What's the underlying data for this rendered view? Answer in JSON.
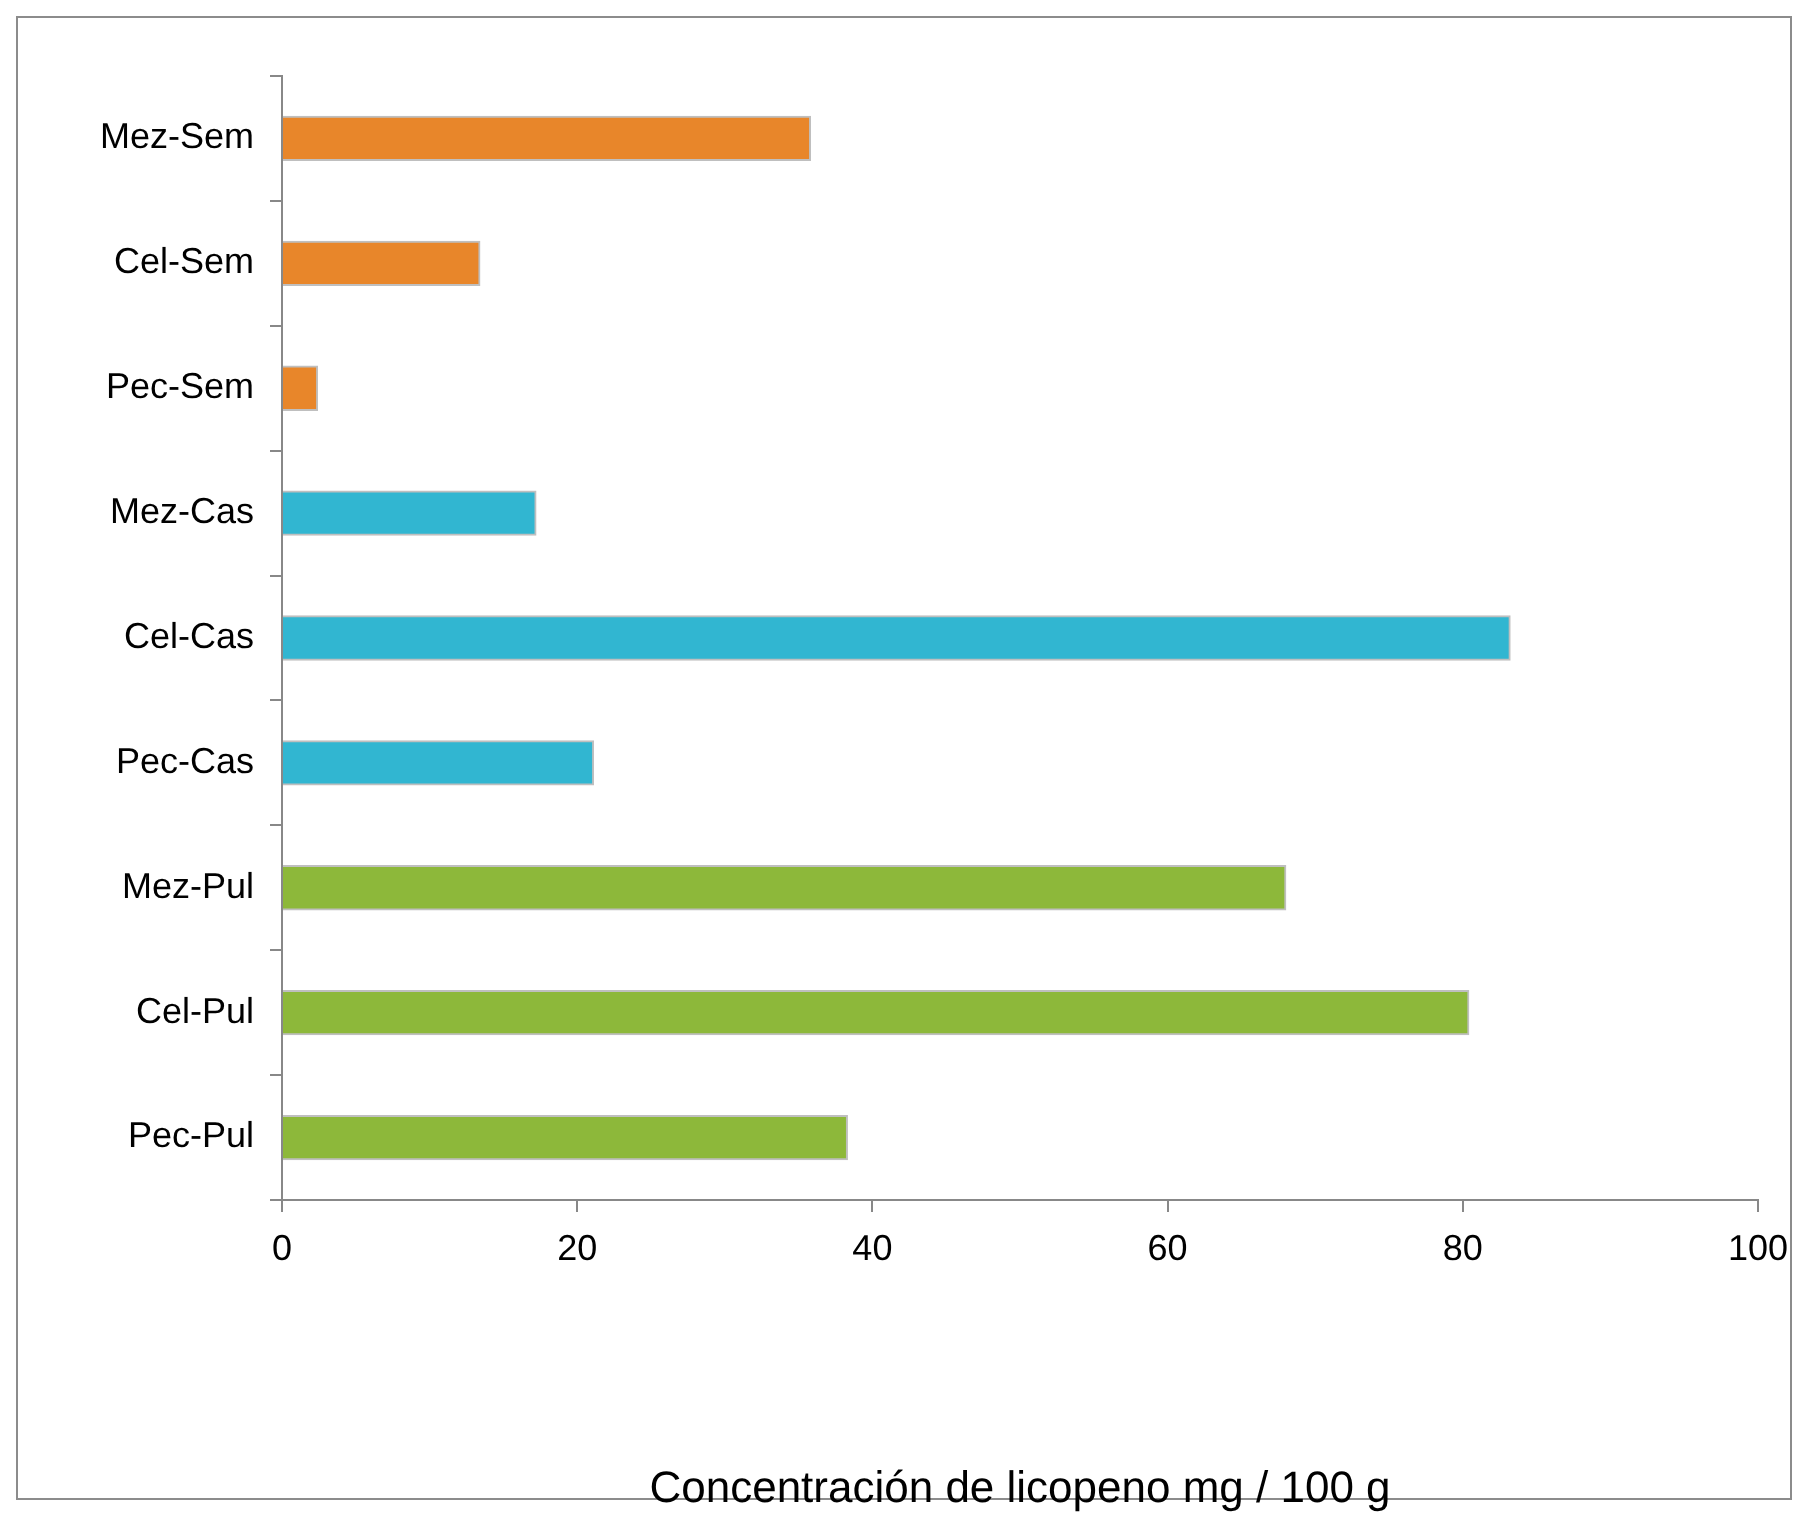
{
  "chart_data": {
    "type": "bar",
    "orientation": "horizontal",
    "xlabel": "Concentración de licopeno mg / 100 g",
    "categories": [
      "Mez-Sem",
      "Cel-Sem",
      "Pec-Sem",
      "Mez-Cas",
      "Cel-Cas",
      "Pec-Cas",
      "Mez-Pul",
      "Cel-Pul",
      "Pec-Pul"
    ],
    "values": [
      35.8,
      13.4,
      2.4,
      17.2,
      83.2,
      21.1,
      68.0,
      80.4,
      38.3
    ],
    "colors": [
      "#e8862a",
      "#e8862a",
      "#e8862a",
      "#31b6d1",
      "#31b6d1",
      "#31b6d1",
      "#8db83a",
      "#8db83a",
      "#8db83a"
    ],
    "xlim": [
      0,
      100
    ],
    "xticks": [
      0,
      20,
      40,
      60,
      80,
      100
    ],
    "grid": false,
    "legend": false
  }
}
